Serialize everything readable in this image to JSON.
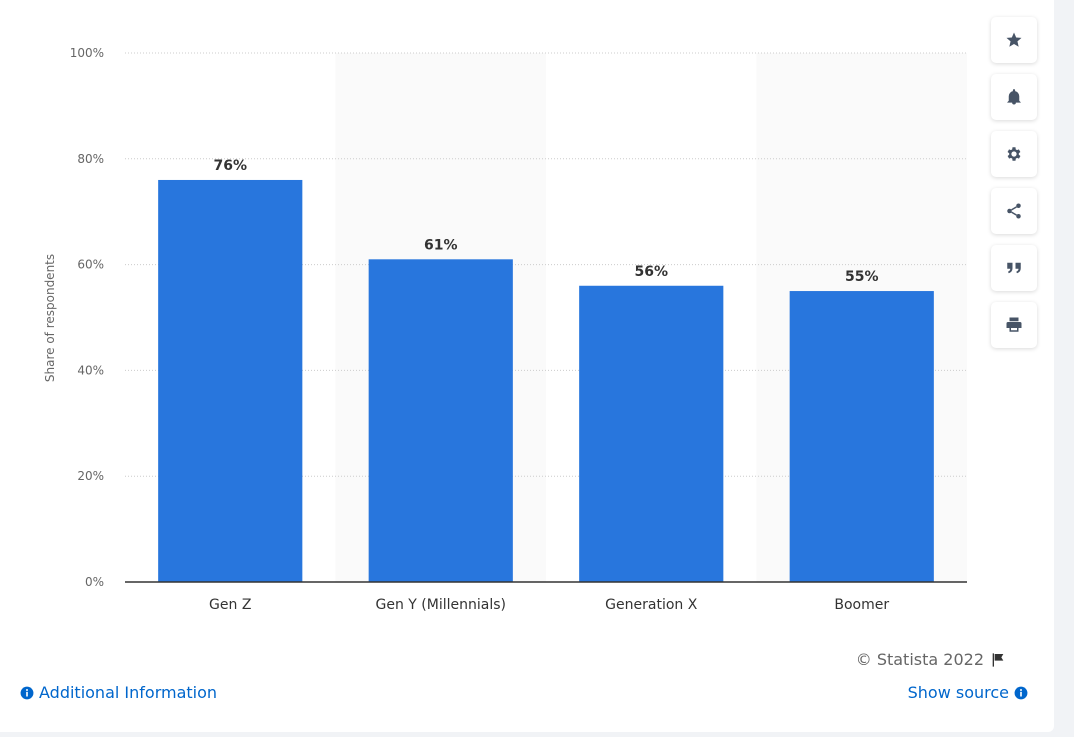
{
  "chart_data": {
    "type": "bar",
    "categories": [
      "Gen Z",
      "Gen Y (Millennials)",
      "Generation X",
      "Boomer"
    ],
    "values": [
      76,
      61,
      56,
      55
    ],
    "data_labels": [
      "76%",
      "61%",
      "56%",
      "55%"
    ],
    "ylabel": "Share of respondents",
    "ylim": [
      0,
      100
    ],
    "yticks": [
      0,
      20,
      40,
      60,
      80,
      100
    ],
    "ytick_labels": [
      "0%",
      "20%",
      "40%",
      "60%",
      "80%",
      "100%"
    ],
    "bar_color": "#2876dd",
    "grid": true,
    "alternate_column_shading": true
  },
  "toolbar": {
    "items": [
      {
        "icon": "star-icon",
        "name": "favorite-button"
      },
      {
        "icon": "bell-icon",
        "name": "notification-button"
      },
      {
        "icon": "gear-icon",
        "name": "settings-button"
      },
      {
        "icon": "share-icon",
        "name": "share-button"
      },
      {
        "icon": "quote-icon",
        "name": "cite-button"
      },
      {
        "icon": "print-icon",
        "name": "print-button"
      }
    ]
  },
  "footer": {
    "copyright": "© Statista 2022",
    "additional_information": "Additional Information",
    "show_source": "Show source"
  },
  "colors": {
    "link": "#0066cc",
    "icon": "#475466"
  }
}
